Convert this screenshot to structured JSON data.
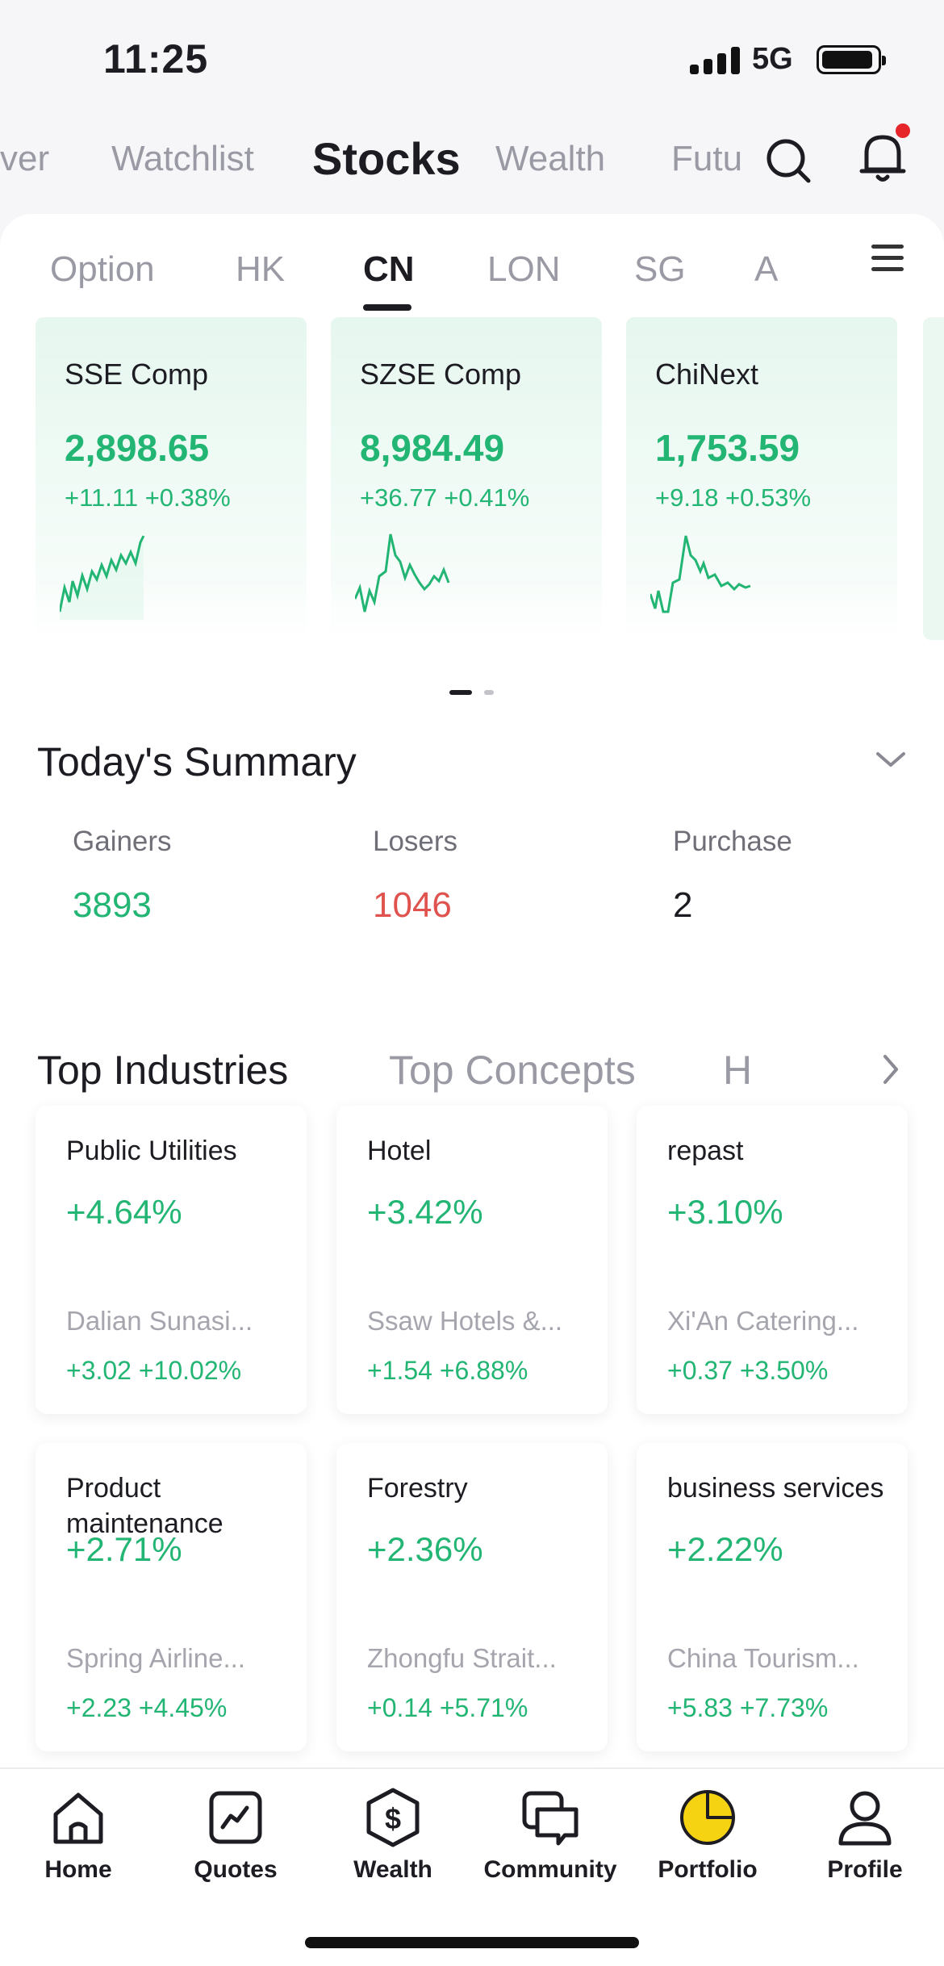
{
  "status_bar": {
    "time": "11:25",
    "network": "5G"
  },
  "top_nav": {
    "items": [
      "ver",
      "Watchlist",
      "Stocks",
      "Wealth",
      "Futu"
    ],
    "active": "Stocks",
    "notification_dot_color": "#e5252a"
  },
  "market_tabs": {
    "items": [
      "Option",
      "HK",
      "CN",
      "LON",
      "SG",
      "A"
    ],
    "active": "CN"
  },
  "indices": [
    {
      "name": "SSE Comp",
      "price": "2,898.65",
      "change": "+11.11 +0.38%"
    },
    {
      "name": "SZSE Comp",
      "price": "8,984.49",
      "change": "+36.77 +0.41%"
    },
    {
      "name": "ChiNext",
      "price": "1,753.59",
      "change": "+9.18 +0.53%"
    }
  ],
  "summary": {
    "title": "Today's Summary",
    "stats": [
      {
        "label": "Gainers",
        "value": "3893",
        "color": "#22b573"
      },
      {
        "label": "Losers",
        "value": "1046",
        "color": "#e0524e"
      },
      {
        "label": "Purchase",
        "value": "2",
        "color": "#1c1c22"
      }
    ]
  },
  "industry_tabs": {
    "items": [
      "Top Industries",
      "Top Concepts",
      "H"
    ],
    "active": "Top Industries"
  },
  "industries": [
    {
      "name": "Public Utilities",
      "pct": "+4.64%",
      "stock": "Dalian Sunasi...",
      "stock_change": "+3.02 +10.02%"
    },
    {
      "name": "Hotel",
      "pct": "+3.42%",
      "stock": "Ssaw Hotels &...",
      "stock_change": "+1.54 +6.88%"
    },
    {
      "name": "repast",
      "pct": "+3.10%",
      "stock": "Xi'An Catering...",
      "stock_change": "+0.37 +3.50%"
    },
    {
      "name": "Product maintenance",
      "pct": "+2.71%",
      "stock": "Spring Airline...",
      "stock_change": "+2.23 +4.45%"
    },
    {
      "name": "Forestry",
      "pct": "+2.36%",
      "stock": "Zhongfu Strait...",
      "stock_change": "+0.14 +5.71%"
    },
    {
      "name": "business services",
      "pct": "+2.22%",
      "stock": "China Tourism...",
      "stock_change": "+5.83 +7.73%"
    }
  ],
  "bottom_nav": {
    "items": [
      {
        "label": "Home",
        "icon": "home-icon"
      },
      {
        "label": "Quotes",
        "icon": "quotes-icon"
      },
      {
        "label": "Wealth",
        "icon": "wealth-icon"
      },
      {
        "label": "Community",
        "icon": "community-icon"
      },
      {
        "label": "Portfolio",
        "icon": "portfolio-icon"
      },
      {
        "label": "Profile",
        "icon": "profile-icon"
      }
    ],
    "active": "Portfolio",
    "accent_color": "#f5d312"
  },
  "colors": {
    "up": "#22b573",
    "down": "#e0524e"
  }
}
